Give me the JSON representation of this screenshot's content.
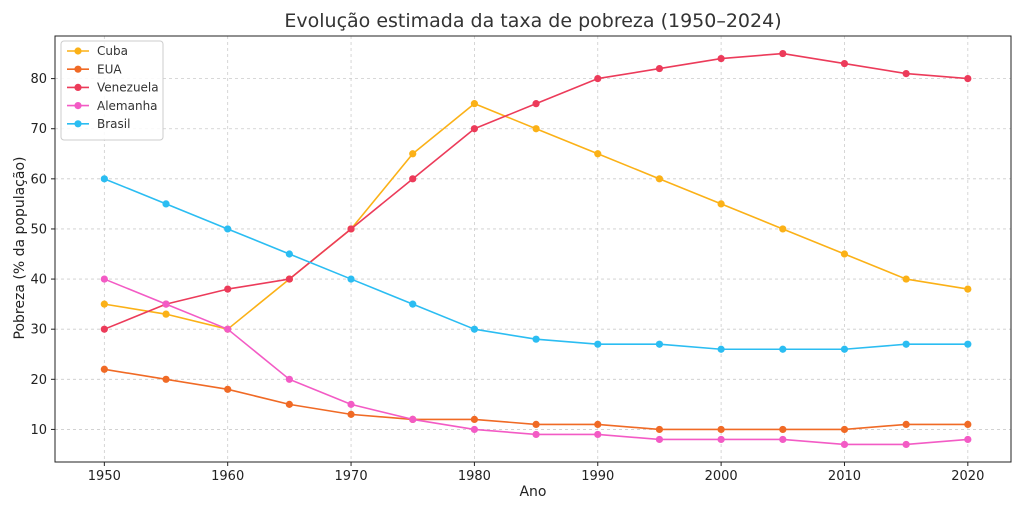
{
  "chart_data": {
    "type": "line",
    "title": "Evolução estimada da taxa de pobreza (1950–2024)",
    "xlabel": "Ano",
    "ylabel": "Pobreza (% da população)",
    "x": [
      1950,
      1955,
      1960,
      1965,
      1970,
      1975,
      1980,
      1985,
      1990,
      1995,
      2000,
      2005,
      2010,
      2015,
      2020
    ],
    "xlim": [
      1946,
      2023.5
    ],
    "ylim": [
      3.5,
      88.5
    ],
    "xticks": [
      1950,
      1960,
      1970,
      1980,
      1990,
      2000,
      2010,
      2020
    ],
    "yticks": [
      10,
      20,
      30,
      40,
      50,
      60,
      70,
      80
    ],
    "grid": true,
    "legend_position": "top-left",
    "series": [
      {
        "name": "Cuba",
        "color": "#fbb117",
        "values": [
          35,
          33,
          30,
          40,
          50,
          65,
          75,
          70,
          65,
          60,
          55,
          50,
          45,
          40,
          38
        ]
      },
      {
        "name": "EUA",
        "color": "#f06a25",
        "values": [
          22,
          20,
          18,
          15,
          13,
          12,
          12,
          11,
          11,
          10,
          10,
          10,
          10,
          11,
          11
        ]
      },
      {
        "name": "Venezuela",
        "color": "#ec3b5a",
        "values": [
          30,
          35,
          38,
          40,
          50,
          60,
          70,
          75,
          80,
          82,
          84,
          85,
          83,
          81,
          80
        ]
      },
      {
        "name": "Alemanha",
        "color": "#f35bc5",
        "values": [
          40,
          35,
          30,
          20,
          15,
          12,
          10,
          9,
          9,
          8,
          8,
          8,
          7,
          7,
          8
        ]
      },
      {
        "name": "Brasil",
        "color": "#2bbdf2",
        "values": [
          60,
          55,
          50,
          45,
          40,
          35,
          30,
          28,
          27,
          27,
          26,
          26,
          26,
          27,
          27
        ]
      }
    ]
  }
}
